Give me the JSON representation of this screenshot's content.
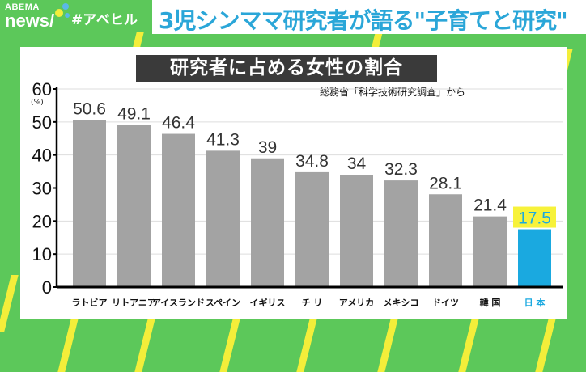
{
  "brand": {
    "top": "ABEMA",
    "bottom": "news/"
  },
  "hashtag": "#アベヒル",
  "headline": "3児シンママ研究者が語る\"子育てと研究\"",
  "colors": {
    "background": "#5cc85a",
    "stripes": "#f3ee3a",
    "bar": "#a3a3a3",
    "highlight_bar": "#1aa9e0",
    "highlight_label_bg": "#f7f23a",
    "headline": "#2aa6d8"
  },
  "chart_data": {
    "type": "bar",
    "title": "研究者に占める女性の割合",
    "source": "総務省「科学技術研究調査」から",
    "ylabel": "(%)",
    "ylim": [
      0,
      60
    ],
    "yticks": [
      0,
      10,
      20,
      30,
      40,
      50,
      60
    ],
    "grid": true,
    "categories": [
      "ラトビア",
      "リトアニア",
      "アイスランド",
      "スペイン",
      "イギリス",
      "チ リ",
      "アメリカ",
      "メキシコ",
      "ドイツ",
      "韓 国",
      "日 本"
    ],
    "values": [
      50.6,
      49.1,
      46.4,
      41.3,
      39,
      34.8,
      34,
      32.3,
      28.1,
      21.4,
      17.5
    ],
    "highlight": "日 本"
  }
}
